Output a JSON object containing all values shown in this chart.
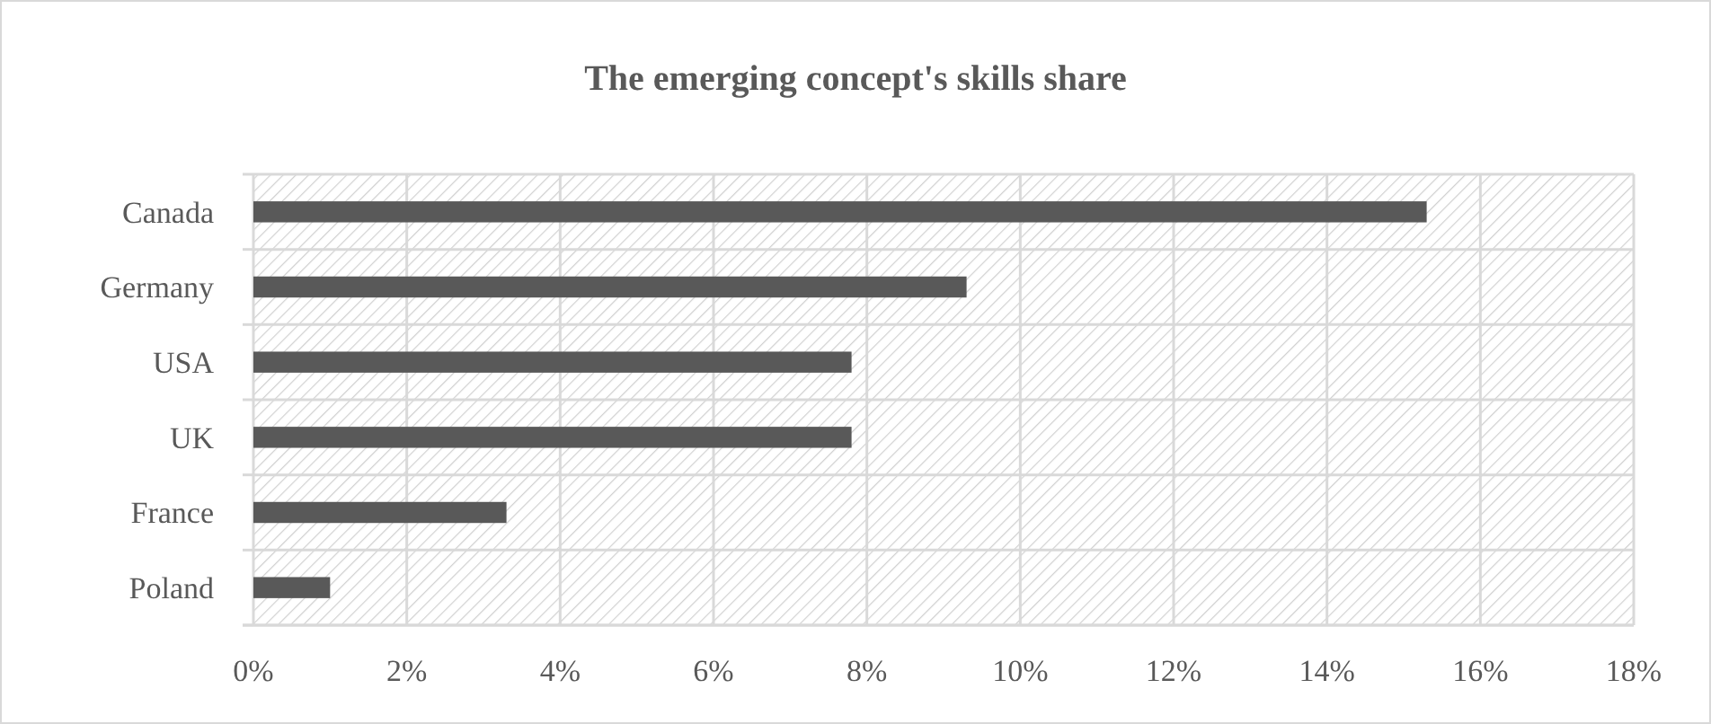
{
  "chart_data": {
    "type": "bar",
    "orientation": "horizontal",
    "title": "The emerging concept's skills share",
    "categories": [
      "Canada",
      "Germany",
      "USA",
      "UK",
      "France",
      "Poland"
    ],
    "values": [
      15.3,
      9.3,
      7.8,
      7.8,
      3.3,
      1.0
    ],
    "color": "#595959",
    "xlim": [
      0,
      18
    ],
    "xticks": [
      {
        "value": 0,
        "label": "0%"
      },
      {
        "value": 2,
        "label": "2%"
      },
      {
        "value": 4,
        "label": "4%"
      },
      {
        "value": 6,
        "label": "6%"
      },
      {
        "value": 8,
        "label": "8%"
      },
      {
        "value": 10,
        "label": "10%"
      },
      {
        "value": 12,
        "label": "12%"
      },
      {
        "value": 14,
        "label": "14%"
      },
      {
        "value": 16,
        "label": "16%"
      },
      {
        "value": 18,
        "label": "18%"
      }
    ],
    "grid": true
  }
}
